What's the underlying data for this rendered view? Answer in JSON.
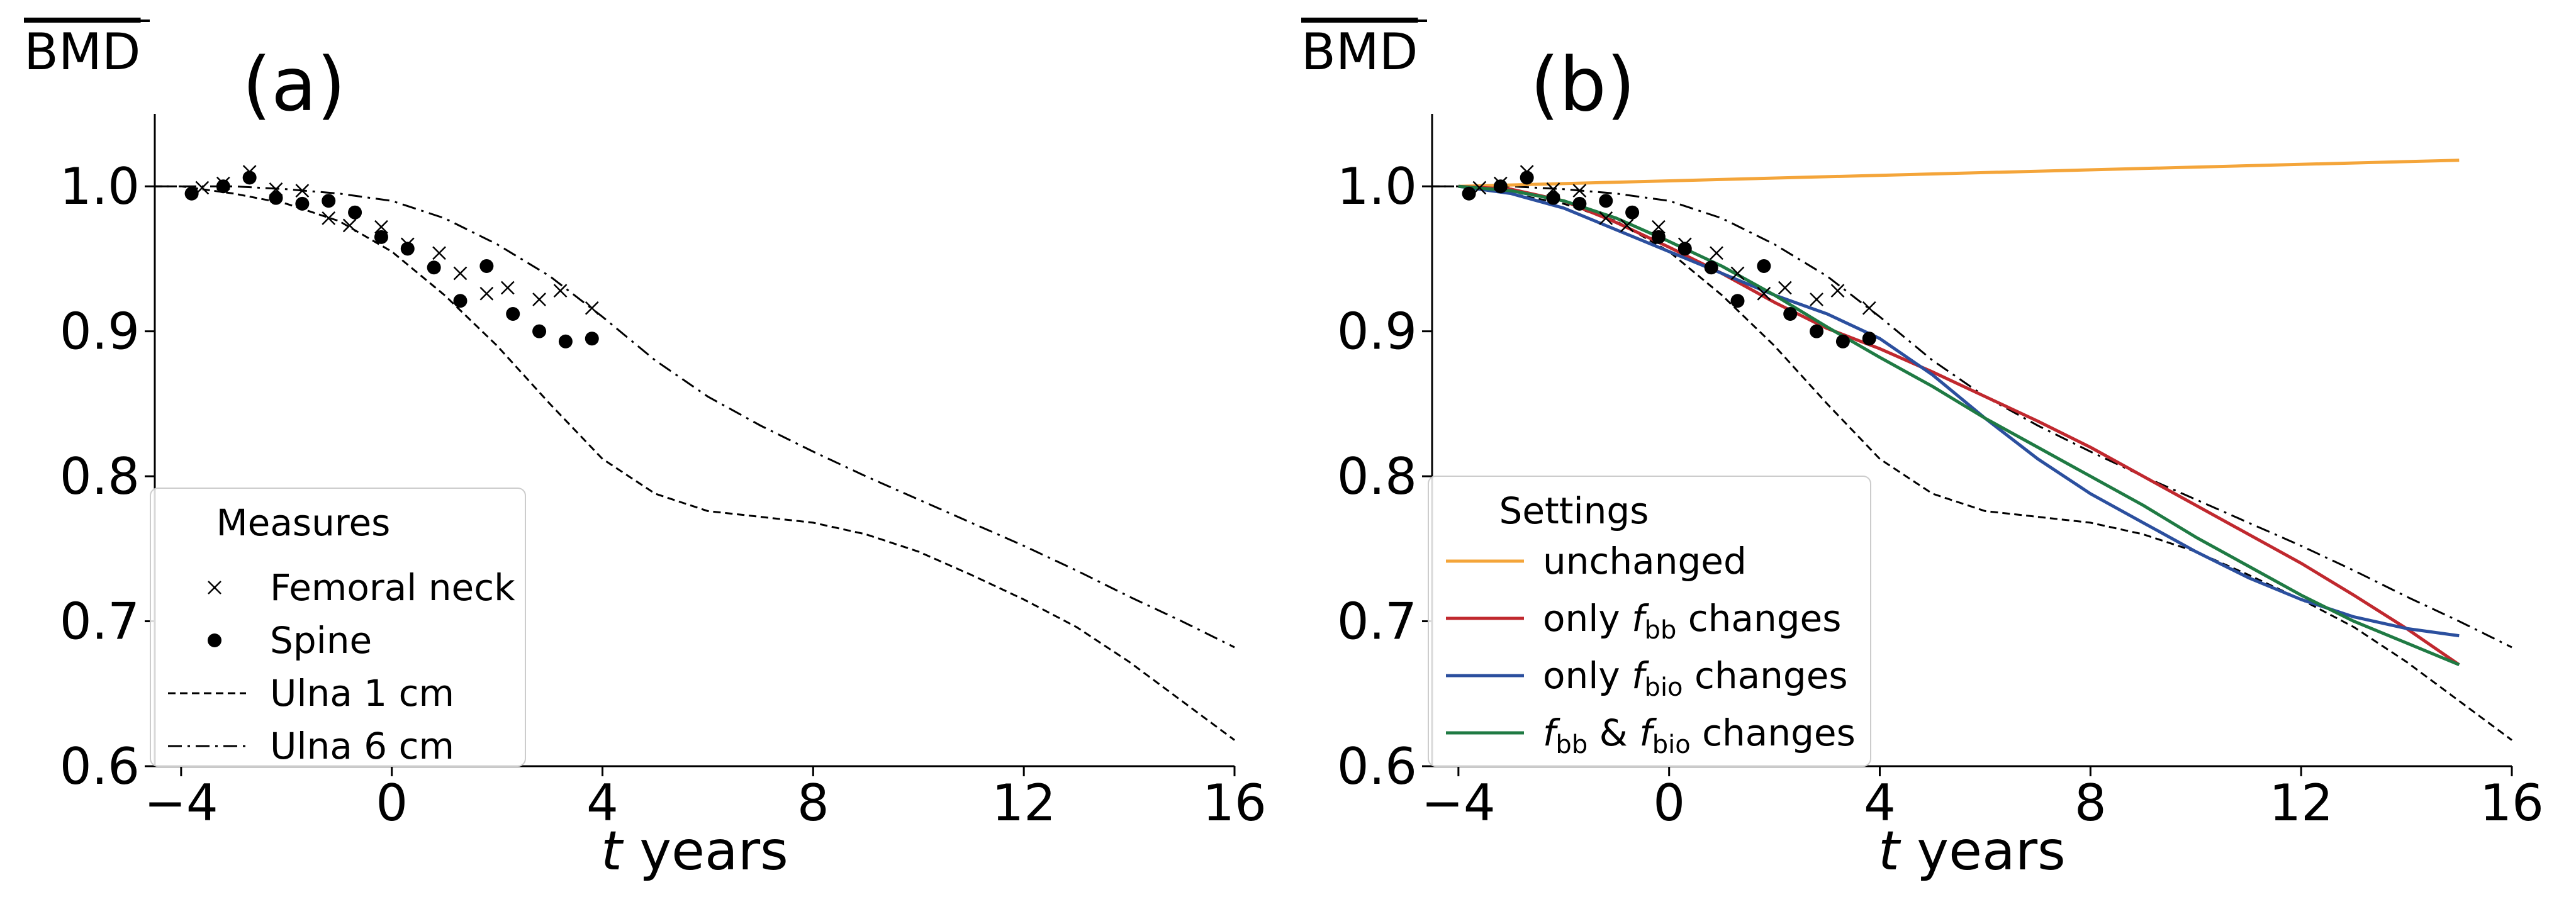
{
  "colors": {
    "unchanged": "#f4a53a",
    "only_fbb": "#c0282e",
    "only_fbio": "#2b4f9e",
    "both": "#1f7a43",
    "reference": "#000000"
  },
  "chart_data": [
    {
      "type": "line",
      "panel_label": "(a)",
      "ylabel": "BMD",
      "ylabel_overline": true,
      "xlabel_italic": "t",
      "xlabel_rest": " years",
      "xlim": [
        -4.5,
        16
      ],
      "ylim": [
        0.6,
        1.05
      ],
      "xticks": [
        -4,
        0,
        4,
        8,
        12,
        16
      ],
      "xtick_labels": [
        "−4",
        "0",
        "4",
        "8",
        "12",
        "16"
      ],
      "yticks": [
        0.6,
        0.7,
        0.8,
        0.9,
        1.0
      ],
      "ytick_labels": [
        "0.6",
        "0.7",
        "0.8",
        "0.9",
        "1.0"
      ],
      "grid": false,
      "legend": {
        "title": "Measures",
        "placement": "lower-left",
        "entries": [
          {
            "key": "femoral_neck",
            "label": "Femoral neck",
            "marker": "x"
          },
          {
            "key": "spine",
            "label": "Spine",
            "marker": "dot"
          },
          {
            "key": "ulna_1cm",
            "label": "Ulna 1 cm",
            "linestyle": "dashed"
          },
          {
            "key": "ulna_6cm",
            "label": "Ulna 6 cm",
            "linestyle": "dashdot"
          }
        ]
      },
      "series": [
        {
          "key": "femoral_neck",
          "name": "Femoral neck",
          "kind": "scatter",
          "marker": "x",
          "x": [
            -3.6,
            -3.2,
            -2.7,
            -2.2,
            -1.7,
            -1.2,
            -0.8,
            -0.2,
            0.3,
            0.9,
            1.3,
            1.8,
            2.2,
            2.8,
            3.2,
            3.8
          ],
          "y": [
            0.999,
            1.002,
            1.01,
            0.998,
            0.997,
            0.978,
            0.973,
            0.972,
            0.96,
            0.954,
            0.94,
            0.926,
            0.93,
            0.922,
            0.928,
            0.916
          ]
        },
        {
          "key": "spine",
          "name": "Spine",
          "kind": "scatter",
          "marker": "dot",
          "x": [
            -3.8,
            -3.2,
            -2.7,
            -2.2,
            -1.7,
            -1.2,
            -0.7,
            -0.2,
            0.3,
            0.8,
            1.3,
            1.8,
            2.3,
            2.8,
            3.3,
            3.8
          ],
          "y": [
            0.995,
            1.0,
            1.006,
            0.992,
            0.988,
            0.99,
            0.982,
            0.965,
            0.957,
            0.944,
            0.921,
            0.945,
            0.912,
            0.9,
            0.893,
            0.895
          ]
        },
        {
          "key": "ulna_1cm",
          "name": "Ulna 1 cm",
          "kind": "line",
          "linestyle": "dashed",
          "x": [
            -4.5,
            -4,
            -3,
            -2,
            -1,
            0,
            1,
            2,
            3,
            4,
            5,
            6,
            7,
            8,
            9,
            10,
            11,
            12,
            13,
            14,
            15,
            16
          ],
          "y": [
            1.0,
            1.0,
            0.995,
            0.988,
            0.976,
            0.955,
            0.925,
            0.89,
            0.85,
            0.812,
            0.788,
            0.776,
            0.772,
            0.768,
            0.76,
            0.748,
            0.732,
            0.715,
            0.696,
            0.672,
            0.645,
            0.618
          ]
        },
        {
          "key": "ulna_6cm",
          "name": "Ulna 6 cm",
          "kind": "line",
          "linestyle": "dashdot",
          "x": [
            -4.5,
            -4,
            -3,
            -2,
            -1,
            0,
            1,
            2,
            3,
            4,
            5,
            6,
            7,
            8,
            9,
            10,
            11,
            12,
            13,
            14,
            15,
            16
          ],
          "y": [
            1.0,
            1.0,
            1.0,
            0.998,
            0.995,
            0.99,
            0.978,
            0.96,
            0.938,
            0.91,
            0.88,
            0.855,
            0.835,
            0.817,
            0.8,
            0.784,
            0.768,
            0.752,
            0.735,
            0.717,
            0.7,
            0.682
          ]
        }
      ]
    },
    {
      "type": "line",
      "panel_label": "(b)",
      "ylabel": "BMD",
      "ylabel_overline": true,
      "xlabel_italic": "t",
      "xlabel_rest": " years",
      "xlim": [
        -4.5,
        16
      ],
      "ylim": [
        0.6,
        1.05
      ],
      "xticks": [
        -4,
        0,
        4,
        8,
        12,
        16
      ],
      "xtick_labels": [
        "−4",
        "0",
        "4",
        "8",
        "12",
        "16"
      ],
      "yticks": [
        0.6,
        0.7,
        0.8,
        0.9,
        1.0
      ],
      "ytick_labels": [
        "0.6",
        "0.7",
        "0.8",
        "0.9",
        "1.0"
      ],
      "grid": false,
      "legend": {
        "title": "Settings",
        "placement": "lower-left",
        "entries": [
          {
            "key": "unchanged",
            "pre": "unchanged",
            "color_key": "unchanged"
          },
          {
            "key": "only_fbb",
            "pre": "only ",
            "f1": "f",
            "s1": "bb",
            "post": " changes",
            "color_key": "only_fbb"
          },
          {
            "key": "only_fbio",
            "pre": "only ",
            "f1": "f",
            "s1": "bio",
            "post": " changes",
            "color_key": "only_fbio"
          },
          {
            "key": "both",
            "pre": "",
            "f1": "f",
            "s1": "bb",
            "mid": " & ",
            "f2": "f",
            "s2": "bio",
            "post": " changes",
            "color_key": "both"
          }
        ]
      },
      "series": [
        {
          "key": "femoral_neck",
          "name": "Femoral neck",
          "kind": "scatter",
          "marker": "x",
          "x": [
            -3.6,
            -3.2,
            -2.7,
            -2.2,
            -1.7,
            -1.2,
            -0.8,
            -0.2,
            0.3,
            0.9,
            1.3,
            1.8,
            2.2,
            2.8,
            3.2,
            3.8
          ],
          "y": [
            0.999,
            1.002,
            1.01,
            0.998,
            0.997,
            0.978,
            0.973,
            0.972,
            0.96,
            0.954,
            0.94,
            0.926,
            0.93,
            0.922,
            0.928,
            0.916
          ]
        },
        {
          "key": "spine",
          "name": "Spine",
          "kind": "scatter",
          "marker": "dot",
          "x": [
            -3.8,
            -3.2,
            -2.7,
            -2.2,
            -1.7,
            -1.2,
            -0.7,
            -0.2,
            0.3,
            0.8,
            1.3,
            1.8,
            2.3,
            2.8,
            3.3,
            3.8
          ],
          "y": [
            0.995,
            1.0,
            1.006,
            0.992,
            0.988,
            0.99,
            0.982,
            0.965,
            0.957,
            0.944,
            0.921,
            0.945,
            0.912,
            0.9,
            0.893,
            0.895
          ]
        },
        {
          "key": "ulna_1cm",
          "name": "Ulna 1 cm",
          "kind": "line",
          "linestyle": "dashed",
          "x": [
            -4.5,
            -4,
            -3,
            -2,
            -1,
            0,
            1,
            2,
            3,
            4,
            5,
            6,
            7,
            8,
            9,
            10,
            11,
            12,
            13,
            14,
            15,
            16
          ],
          "y": [
            1.0,
            1.0,
            0.995,
            0.988,
            0.976,
            0.955,
            0.925,
            0.89,
            0.85,
            0.812,
            0.788,
            0.776,
            0.772,
            0.768,
            0.76,
            0.748,
            0.732,
            0.715,
            0.696,
            0.672,
            0.645,
            0.618
          ]
        },
        {
          "key": "ulna_6cm",
          "name": "Ulna 6 cm",
          "kind": "line",
          "linestyle": "dashdot",
          "x": [
            -4.5,
            -4,
            -3,
            -2,
            -1,
            0,
            1,
            2,
            3,
            4,
            5,
            6,
            7,
            8,
            9,
            10,
            11,
            12,
            13,
            14,
            15,
            16
          ],
          "y": [
            1.0,
            1.0,
            1.0,
            0.998,
            0.995,
            0.99,
            0.978,
            0.96,
            0.938,
            0.91,
            0.88,
            0.855,
            0.835,
            0.817,
            0.8,
            0.784,
            0.768,
            0.752,
            0.735,
            0.717,
            0.7,
            0.682
          ]
        },
        {
          "key": "unchanged",
          "name": "unchanged",
          "kind": "line",
          "linestyle": "solid",
          "color_key": "unchanged",
          "x": [
            -4,
            15
          ],
          "y": [
            1.0,
            1.018
          ]
        },
        {
          "key": "only_fbb",
          "name": "only f_bb changes",
          "kind": "line",
          "linestyle": "solid",
          "color_key": "only_fbb",
          "x": [
            -4,
            -3,
            -2,
            -1,
            0,
            1,
            2,
            3,
            4,
            5,
            6,
            7,
            8,
            9,
            10,
            11,
            12,
            13,
            14,
            15
          ],
          "y": [
            1.0,
            0.998,
            0.99,
            0.975,
            0.958,
            0.94,
            0.92,
            0.902,
            0.888,
            0.872,
            0.855,
            0.838,
            0.82,
            0.8,
            0.78,
            0.76,
            0.74,
            0.718,
            0.695,
            0.67
          ]
        },
        {
          "key": "only_fbio",
          "name": "only f_bio changes",
          "kind": "line",
          "linestyle": "solid",
          "color_key": "only_fbio",
          "x": [
            -4,
            -3,
            -2,
            -1,
            0,
            1,
            2,
            3,
            4,
            5,
            6,
            7,
            8,
            9,
            10,
            11,
            12,
            13,
            14,
            15
          ],
          "y": [
            1.0,
            0.995,
            0.985,
            0.97,
            0.955,
            0.94,
            0.925,
            0.912,
            0.895,
            0.87,
            0.84,
            0.812,
            0.788,
            0.768,
            0.748,
            0.73,
            0.715,
            0.703,
            0.695,
            0.69
          ]
        },
        {
          "key": "both",
          "name": "f_bb & f_bio changes",
          "kind": "line",
          "linestyle": "solid",
          "color_key": "both",
          "x": [
            -4,
            -3,
            -2,
            -1,
            0,
            1,
            2,
            3,
            4,
            5,
            6,
            7,
            8,
            9,
            10,
            11,
            12,
            13,
            14,
            15
          ],
          "y": [
            1.0,
            0.997,
            0.99,
            0.978,
            0.962,
            0.945,
            0.925,
            0.903,
            0.882,
            0.862,
            0.84,
            0.82,
            0.8,
            0.78,
            0.758,
            0.738,
            0.718,
            0.7,
            0.685,
            0.67
          ]
        }
      ]
    }
  ]
}
